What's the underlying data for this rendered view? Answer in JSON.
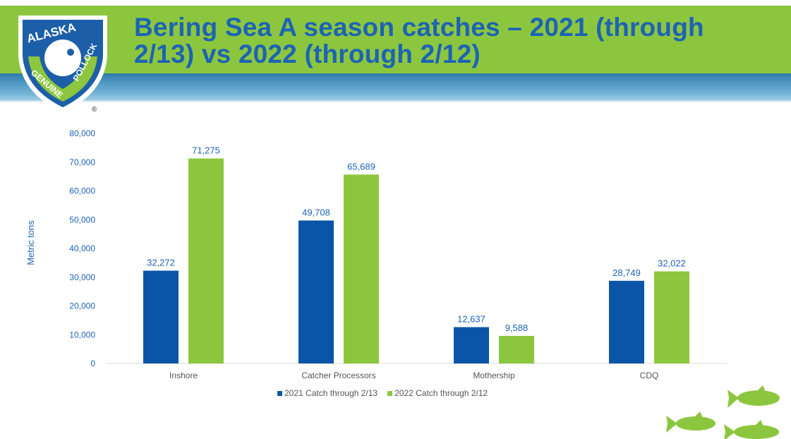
{
  "header": {
    "title_line1": "Bering Sea A season catches – 2021 (through",
    "title_line2": "2/13) vs 2022 (through 2/12)"
  },
  "logo": {
    "top_text": "ALASKA",
    "left_text": "GENUINE",
    "right_text": "POLLOCK",
    "mark": "®"
  },
  "colors": {
    "series_2021": "#0b55a8",
    "series_2022": "#8cc63f",
    "title": "#1d63b4",
    "axis_text": "#1d63b4"
  },
  "chart_data": {
    "type": "bar",
    "categories": [
      "Inshore",
      "Catcher Processors",
      "Mothership",
      "CDQ"
    ],
    "series": [
      {
        "name": "2021 Catch through 2/13",
        "values": [
          32272,
          49708,
          12637,
          28749
        ]
      },
      {
        "name": "2022 Catch through 2/12",
        "values": [
          71275,
          65689,
          9588,
          32022
        ]
      }
    ],
    "data_labels": [
      [
        "32,272",
        "49,708",
        "12,637",
        "28,749"
      ],
      [
        "71,275",
        "65,689",
        "9,588",
        "32,022"
      ]
    ],
    "ylabel": "Metric tons",
    "ylim": [
      0,
      80000
    ],
    "yticks": [
      "0",
      "10,000",
      "20,000",
      "30,000",
      "40,000",
      "50,000",
      "60,000",
      "70,000",
      "80,000"
    ],
    "grid": false,
    "legend_position": "bottom"
  },
  "legend": {
    "item1": "2021 Catch through 2/13",
    "item2": "2022 Catch through 2/12"
  },
  "decor": {
    "fish_icon": "fish-icon"
  }
}
